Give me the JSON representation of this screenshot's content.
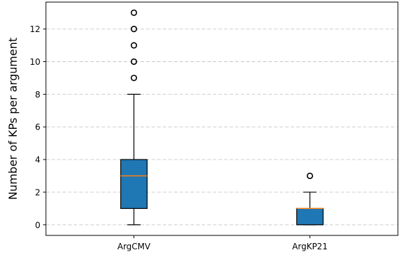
{
  "chart_data": {
    "type": "box",
    "title": "",
    "xlabel": "",
    "ylabel": "Number of KPs per argument",
    "categories": [
      "ArgCMV",
      "ArgKP21"
    ],
    "ylim": [
      -0.65,
      13.65
    ],
    "yticks": [
      0,
      2,
      4,
      6,
      8,
      10,
      12
    ],
    "grid": {
      "y": true,
      "style": "dashed",
      "color": "#c8c8c8"
    },
    "box_color": "#1f77b4",
    "median_color": "#ff7f0e",
    "boxes": [
      {
        "category": "ArgCMV",
        "whisker_low": 0,
        "q1": 1,
        "median": 3,
        "q3": 4,
        "whisker_high": 8,
        "outliers": [
          9,
          10,
          11,
          12,
          13
        ]
      },
      {
        "category": "ArgKP21",
        "whisker_low": 0,
        "q1": 0,
        "median": 1,
        "q3": 1,
        "whisker_high": 2,
        "outliers": [
          3
        ]
      }
    ]
  }
}
